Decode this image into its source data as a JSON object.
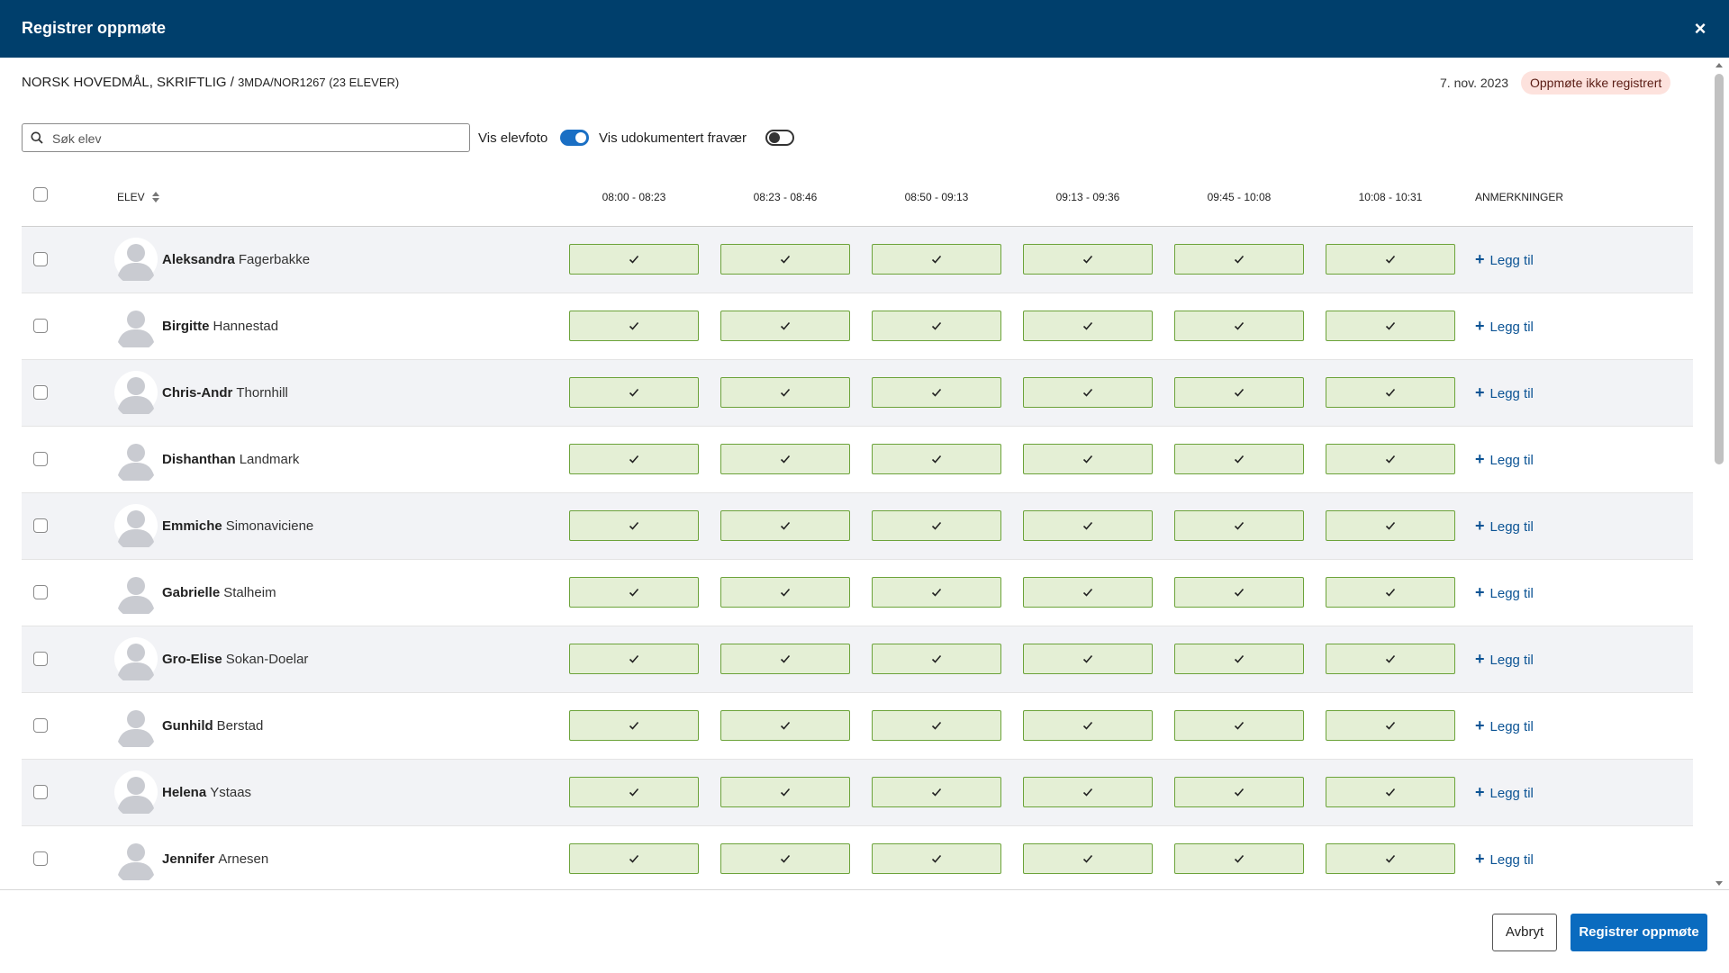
{
  "modal": {
    "title": "Registrer oppmøte",
    "close_icon_glyph": "×"
  },
  "lesson": {
    "course": "Norsk hovedmål, skriftlig",
    "separator": "/",
    "group": "3MDA/NOR1267 (23 ELEVER)",
    "date": "7. nov. 2023",
    "status_badge": "Oppmøte ikke registrert"
  },
  "controls": {
    "search_placeholder": "Søk elev",
    "search_value": "",
    "show_photo_label": "Vis elevfoto",
    "show_photo_on": true,
    "show_undocumented_label": "Vis udokumentert fravær",
    "show_undocumented_on": false
  },
  "table": {
    "student_header": "Elev",
    "slots": [
      "08:00 - 08:23",
      "08:23 - 08:46",
      "08:50 - 09:13",
      "09:13 - 09:36",
      "09:45 - 10:08",
      "10:08 - 10:31"
    ],
    "notes_header": "Anmerkninger",
    "add_note_label": "Legg til",
    "rows": [
      {
        "first": "Aleksandra",
        "last": "Fagerbakke",
        "present": [
          true,
          true,
          true,
          true,
          true,
          true
        ]
      },
      {
        "first": "Birgitte",
        "last": "Hannestad",
        "present": [
          true,
          true,
          true,
          true,
          true,
          true
        ]
      },
      {
        "first": "Chris-Andr",
        "last": "Thornhill",
        "present": [
          true,
          true,
          true,
          true,
          true,
          true
        ]
      },
      {
        "first": "Dishanthan",
        "last": "Landmark",
        "present": [
          true,
          true,
          true,
          true,
          true,
          true
        ]
      },
      {
        "first": "Emmiche",
        "last": "Simonaviciene",
        "present": [
          true,
          true,
          true,
          true,
          true,
          true
        ]
      },
      {
        "first": "Gabrielle",
        "last": "Stalheim",
        "present": [
          true,
          true,
          true,
          true,
          true,
          true
        ]
      },
      {
        "first": "Gro-Elise",
        "last": "Sokan-Doelar",
        "present": [
          true,
          true,
          true,
          true,
          true,
          true
        ]
      },
      {
        "first": "Gunhild",
        "last": "Berstad",
        "present": [
          true,
          true,
          true,
          true,
          true,
          true
        ]
      },
      {
        "first": "Helena",
        "last": "Ystaas",
        "present": [
          true,
          true,
          true,
          true,
          true,
          true
        ]
      },
      {
        "first": "Jennifer",
        "last": "Arnesen",
        "present": [
          true,
          true,
          true,
          true,
          true,
          true
        ]
      }
    ]
  },
  "footer": {
    "cancel_label": "Avbryt",
    "submit_label": "Registrer oppmøte"
  },
  "colors": {
    "header_bg": "#003f6c",
    "present_fill": "#e4efd5",
    "present_border": "#6ca33a",
    "badge_bg": "#fde2dd",
    "primary": "#0a6bbf",
    "link": "#0b5394"
  },
  "icons": {
    "close": "close-icon",
    "search": "search-icon",
    "sort": "sort-icon",
    "avatar": "avatar-placeholder-icon",
    "check": "check-icon",
    "add": "plus-icon"
  }
}
